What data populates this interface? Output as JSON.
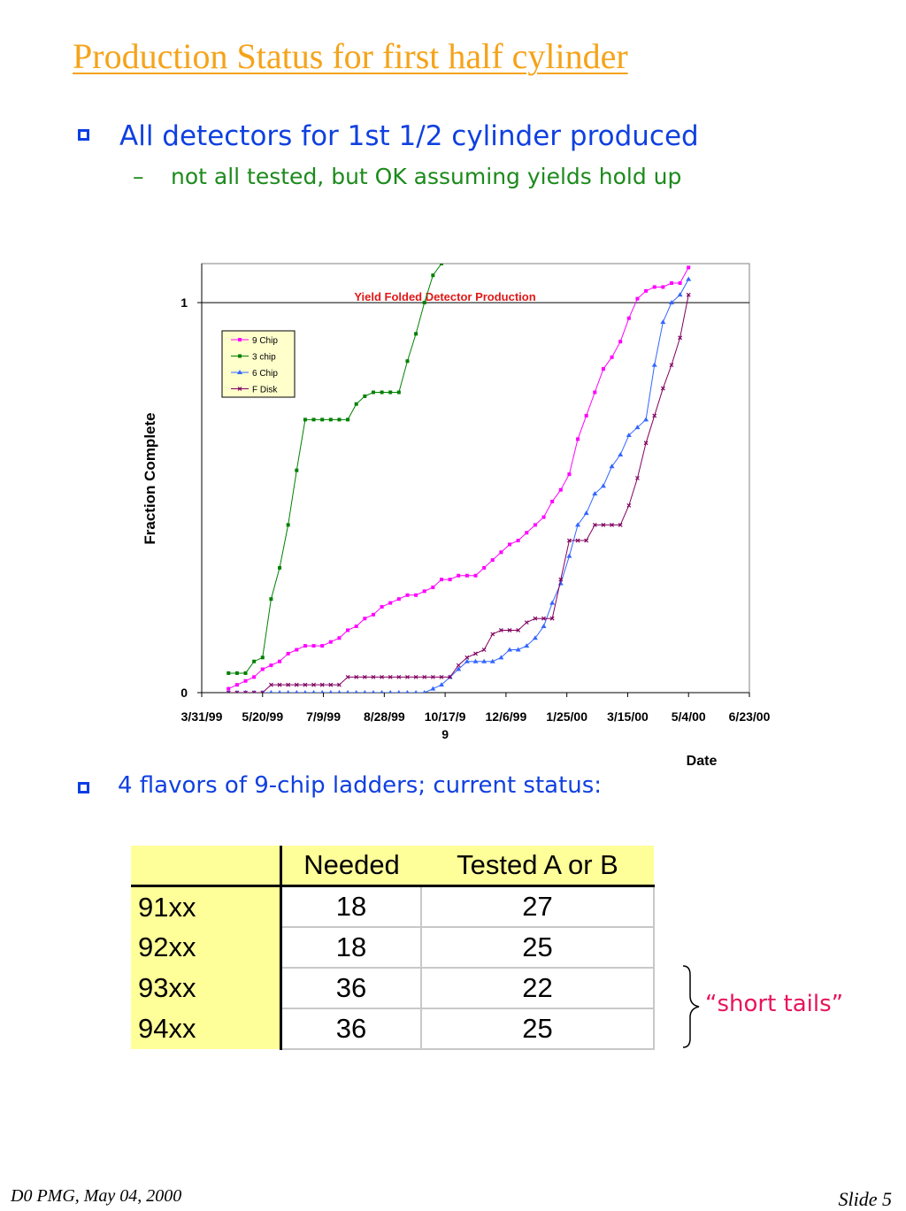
{
  "slide": {
    "title": "Production Status for first half cylinder",
    "bullet1": "All detectors for 1st 1/2 cylinder produced",
    "sub_bullet_dash": "–",
    "sub_bullet": "not all tested, but OK assuming yields hold up",
    "bullet2": "4 flavors of 9-chip ladders; current status:",
    "brace_label": "“short tails”",
    "footer_left": "D0 PMG, May 04, 2000",
    "footer_right": "Slide 5"
  },
  "table": {
    "headers": [
      "",
      "Needed",
      "Tested A or B"
    ],
    "rows": [
      {
        "name": "91xx",
        "needed": "18",
        "tested": "27"
      },
      {
        "name": "92xx",
        "needed": "18",
        "tested": "25"
      },
      {
        "name": "93xx",
        "needed": "36",
        "tested": "22"
      },
      {
        "name": "94xx",
        "needed": "36",
        "tested": "25"
      }
    ]
  },
  "colors": {
    "title": "#f5a31a",
    "bullet": "#1040e0",
    "sub_bullet": "#1c8a1c",
    "chart_title": "#e01818",
    "nine_chip": "#ff00ff",
    "three_chip": "#008000",
    "six_chip": "#3366ff",
    "f_disk": "#800060",
    "table_header_bg": "#ffff99",
    "brace_label": "#e8145a"
  },
  "chart_data": {
    "type": "line",
    "title": "Yield Folded Detector Production",
    "xlabel": "Date",
    "ylabel": "Fraction Complete",
    "x_ticks": [
      "3/31/99",
      "5/20/99",
      "7/9/99",
      "8/28/99",
      "10/17/99",
      "12/6/99",
      "1/25/00",
      "3/15/00",
      "5/4/00",
      "6/23/00"
    ],
    "y_ticks": [
      "0",
      "1"
    ],
    "xlim": [
      "3/31/99",
      "6/23/00"
    ],
    "ylim": [
      0,
      1.1
    ],
    "reference_line": 1,
    "legend_position": "top-left",
    "series": [
      {
        "name": "9 Chip",
        "marker": "square",
        "x": [
          "4/22/99",
          "4/29/99",
          "5/6/99",
          "5/13/99",
          "5/20/99",
          "5/27/99",
          "6/3/99",
          "6/10/99",
          "6/17/99",
          "6/24/99",
          "7/1/99",
          "7/8/99",
          "7/15/99",
          "7/22/99",
          "7/29/99",
          "8/5/99",
          "8/12/99",
          "8/19/99",
          "8/26/99",
          "9/2/99",
          "9/9/99",
          "9/16/99",
          "9/23/99",
          "9/30/99",
          "10/7/99",
          "10/14/99",
          "10/21/99",
          "10/28/99",
          "11/4/99",
          "11/11/99",
          "11/18/99",
          "11/25/99",
          "12/2/99",
          "12/9/99",
          "12/16/99",
          "12/23/99",
          "12/30/99",
          "1/6/00",
          "1/13/00",
          "1/20/00",
          "1/27/00",
          "2/3/00",
          "2/10/00",
          "2/17/00",
          "2/24/00",
          "3/2/00",
          "3/9/00",
          "3/16/00",
          "3/23/00",
          "3/30/00",
          "4/6/00",
          "4/13/00",
          "4/20/00",
          "4/27/00",
          "5/4/00"
        ],
        "values": [
          0.01,
          0.02,
          0.03,
          0.04,
          0.06,
          0.07,
          0.08,
          0.1,
          0.11,
          0.12,
          0.12,
          0.12,
          0.13,
          0.14,
          0.16,
          0.17,
          0.19,
          0.2,
          0.22,
          0.23,
          0.24,
          0.25,
          0.25,
          0.26,
          0.27,
          0.29,
          0.29,
          0.3,
          0.3,
          0.3,
          0.32,
          0.34,
          0.36,
          0.38,
          0.39,
          0.41,
          0.43,
          0.45,
          0.49,
          0.52,
          0.56,
          0.65,
          0.71,
          0.77,
          0.83,
          0.86,
          0.9,
          0.96,
          1.01,
          1.03,
          1.04,
          1.04,
          1.05,
          1.05,
          1.09
        ]
      },
      {
        "name": "3 chip",
        "marker": "square",
        "x": [
          "4/22/99",
          "4/29/99",
          "5/6/99",
          "5/13/99",
          "5/20/99",
          "5/27/99",
          "6/3/99",
          "6/10/99",
          "6/17/99",
          "6/24/99",
          "7/1/99",
          "7/8/99",
          "7/15/99",
          "7/22/99",
          "7/29/99",
          "8/5/99",
          "8/12/99",
          "8/19/99",
          "8/26/99",
          "9/2/99",
          "9/9/99",
          "9/16/99",
          "9/23/99",
          "9/30/99",
          "10/7/99",
          "10/14/99"
        ],
        "values": [
          0.05,
          0.05,
          0.05,
          0.08,
          0.09,
          0.24,
          0.32,
          0.43,
          0.57,
          0.7,
          0.7,
          0.7,
          0.7,
          0.7,
          0.7,
          0.74,
          0.76,
          0.77,
          0.77,
          0.77,
          0.77,
          0.85,
          0.92,
          1.0,
          1.07,
          1.1
        ]
      },
      {
        "name": "6 Chip",
        "marker": "triangle",
        "x": [
          "4/22/99",
          "4/29/99",
          "5/6/99",
          "5/13/99",
          "5/20/99",
          "5/27/99",
          "6/3/99",
          "6/10/99",
          "6/17/99",
          "6/24/99",
          "7/1/99",
          "7/8/99",
          "7/15/99",
          "7/22/99",
          "7/29/99",
          "8/5/99",
          "8/12/99",
          "8/19/99",
          "8/26/99",
          "9/2/99",
          "9/9/99",
          "9/16/99",
          "9/23/99",
          "9/30/99",
          "10/7/99",
          "10/14/99",
          "10/21/99",
          "10/28/99",
          "11/4/99",
          "11/11/99",
          "11/18/99",
          "11/25/99",
          "12/2/99",
          "12/9/99",
          "12/16/99",
          "12/23/99",
          "12/30/99",
          "1/6/00",
          "1/13/00",
          "1/20/00",
          "1/27/00",
          "2/3/00",
          "2/10/00",
          "2/17/00",
          "2/24/00",
          "3/2/00",
          "3/9/00",
          "3/16/00",
          "3/23/00",
          "3/30/00",
          "4/6/00",
          "4/13/00",
          "4/20/00",
          "4/27/00",
          "5/4/00"
        ],
        "values": [
          0,
          0,
          0,
          0,
          0,
          0,
          0,
          0,
          0,
          0,
          0,
          0,
          0,
          0,
          0,
          0,
          0,
          0,
          0,
          0,
          0,
          0,
          0,
          0,
          0.01,
          0.02,
          0.04,
          0.06,
          0.08,
          0.08,
          0.08,
          0.08,
          0.09,
          0.11,
          0.11,
          0.12,
          0.14,
          0.17,
          0.23,
          0.28,
          0.35,
          0.43,
          0.46,
          0.51,
          0.53,
          0.58,
          0.61,
          0.66,
          0.68,
          0.7,
          0.84,
          0.95,
          1.0,
          1.02,
          1.06
        ]
      },
      {
        "name": "F Disk",
        "marker": "x",
        "x": [
          "4/22/99",
          "4/29/99",
          "5/6/99",
          "5/13/99",
          "5/20/99",
          "5/27/99",
          "6/3/99",
          "6/10/99",
          "6/17/99",
          "6/24/99",
          "7/1/99",
          "7/8/99",
          "7/15/99",
          "7/22/99",
          "7/29/99",
          "8/5/99",
          "8/12/99",
          "8/19/99",
          "8/26/99",
          "9/2/99",
          "9/9/99",
          "9/16/99",
          "9/23/99",
          "9/30/99",
          "10/7/99",
          "10/14/99",
          "10/21/99",
          "10/28/99",
          "11/4/99",
          "11/11/99",
          "11/18/99",
          "11/25/99",
          "12/2/99",
          "12/9/99",
          "12/16/99",
          "12/23/99",
          "12/30/99",
          "1/6/00",
          "1/13/00",
          "1/20/00",
          "1/27/00",
          "2/3/00",
          "2/10/00",
          "2/17/00",
          "2/24/00",
          "3/2/00",
          "3/9/00",
          "3/16/00",
          "3/23/00",
          "3/30/00",
          "4/6/00",
          "4/13/00",
          "4/20/00",
          "4/27/00",
          "5/4/00"
        ],
        "values": [
          0,
          0,
          0,
          0,
          0,
          0.02,
          0.02,
          0.02,
          0.02,
          0.02,
          0.02,
          0.02,
          0.02,
          0.02,
          0.04,
          0.04,
          0.04,
          0.04,
          0.04,
          0.04,
          0.04,
          0.04,
          0.04,
          0.04,
          0.04,
          0.04,
          0.04,
          0.07,
          0.09,
          0.1,
          0.11,
          0.15,
          0.16,
          0.16,
          0.16,
          0.18,
          0.19,
          0.19,
          0.19,
          0.29,
          0.39,
          0.39,
          0.39,
          0.43,
          0.43,
          0.43,
          0.43,
          0.48,
          0.55,
          0.64,
          0.71,
          0.78,
          0.84,
          0.91,
          1.02
        ]
      }
    ]
  }
}
